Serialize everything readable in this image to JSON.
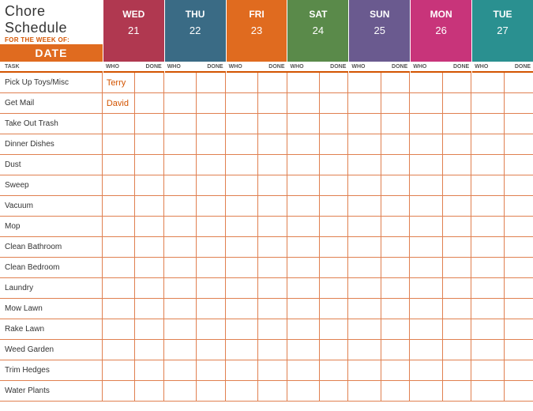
{
  "title": "Chore Schedule",
  "subtitle": "FOR THE WEEK OF:",
  "date_label": "DATE",
  "task_header": "TASK",
  "who_header": "WHO",
  "done_header": "DONE",
  "day_colors": [
    "#b03850",
    "#3a6b85",
    "#e06b1f",
    "#5a8a4a",
    "#6a5a8f",
    "#c8347a",
    "#2a9090"
  ],
  "accent_color": "#e06b1f",
  "border_color": "#e08050",
  "days": [
    {
      "name": "WED",
      "num": "21"
    },
    {
      "name": "THU",
      "num": "22"
    },
    {
      "name": "FRI",
      "num": "23"
    },
    {
      "name": "SAT",
      "num": "24"
    },
    {
      "name": "SUN",
      "num": "25"
    },
    {
      "name": "MON",
      "num": "26"
    },
    {
      "name": "TUE",
      "num": "27"
    }
  ],
  "tasks": [
    {
      "name": "Pick Up Toys/Misc",
      "assignments": [
        "Terry",
        "",
        "",
        "",
        "",
        "",
        ""
      ]
    },
    {
      "name": "Get Mail",
      "assignments": [
        "David",
        "",
        "",
        "",
        "",
        "",
        ""
      ]
    },
    {
      "name": "Take Out Trash",
      "assignments": [
        "",
        "",
        "",
        "",
        "",
        "",
        ""
      ]
    },
    {
      "name": "Dinner Dishes",
      "assignments": [
        "",
        "",
        "",
        "",
        "",
        "",
        ""
      ]
    },
    {
      "name": "Dust",
      "assignments": [
        "",
        "",
        "",
        "",
        "",
        "",
        ""
      ]
    },
    {
      "name": "Sweep",
      "assignments": [
        "",
        "",
        "",
        "",
        "",
        "",
        ""
      ]
    },
    {
      "name": "Vacuum",
      "assignments": [
        "",
        "",
        "",
        "",
        "",
        "",
        ""
      ]
    },
    {
      "name": "Mop",
      "assignments": [
        "",
        "",
        "",
        "",
        "",
        "",
        ""
      ]
    },
    {
      "name": "Clean Bathroom",
      "assignments": [
        "",
        "",
        "",
        "",
        "",
        "",
        ""
      ]
    },
    {
      "name": "Clean Bedroom",
      "assignments": [
        "",
        "",
        "",
        "",
        "",
        "",
        ""
      ]
    },
    {
      "name": "Laundry",
      "assignments": [
        "",
        "",
        "",
        "",
        "",
        "",
        ""
      ]
    },
    {
      "name": "Mow Lawn",
      "assignments": [
        "",
        "",
        "",
        "",
        "",
        "",
        ""
      ]
    },
    {
      "name": "Rake Lawn",
      "assignments": [
        "",
        "",
        "",
        "",
        "",
        "",
        ""
      ]
    },
    {
      "name": "Weed Garden",
      "assignments": [
        "",
        "",
        "",
        "",
        "",
        "",
        ""
      ]
    },
    {
      "name": "Trim Hedges",
      "assignments": [
        "",
        "",
        "",
        "",
        "",
        "",
        ""
      ]
    },
    {
      "name": "Water Plants",
      "assignments": [
        "",
        "",
        "",
        "",
        "",
        "",
        ""
      ]
    }
  ]
}
